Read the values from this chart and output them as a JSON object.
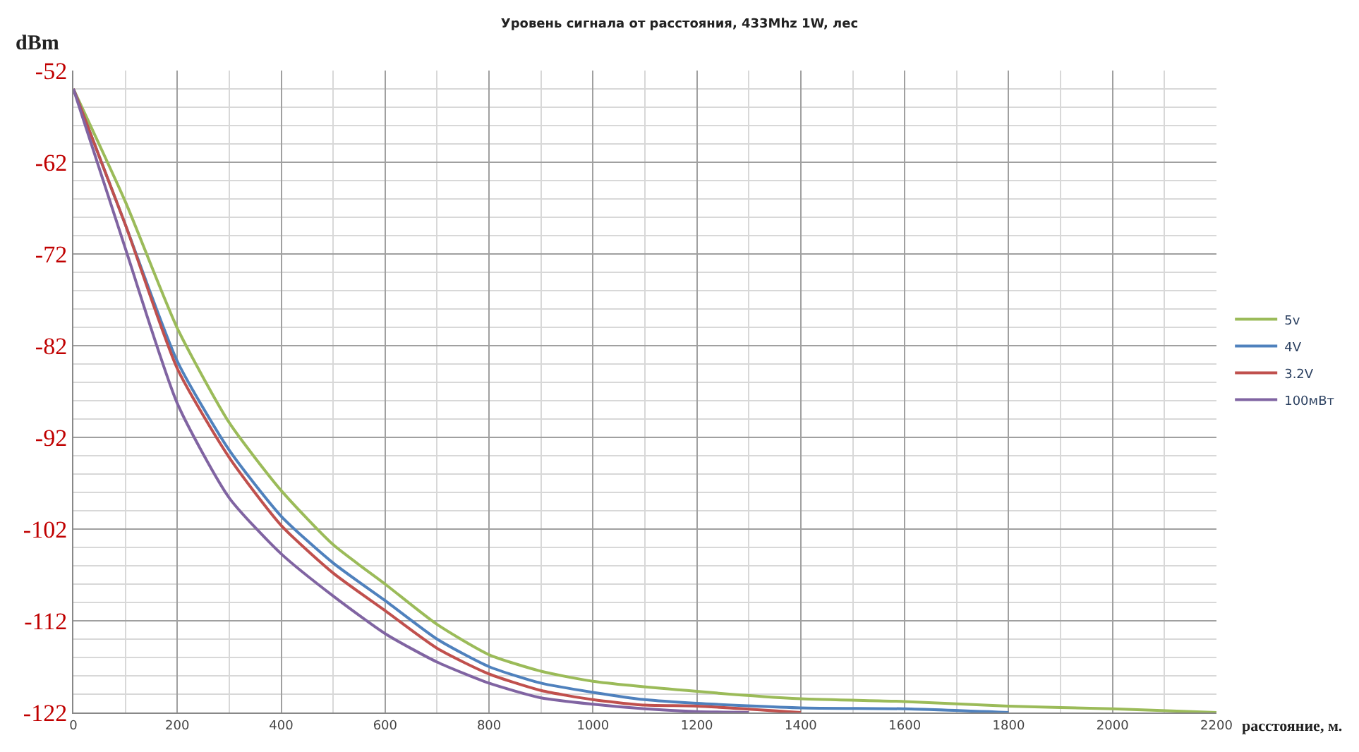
{
  "chart_data": {
    "type": "line",
    "title": "Уровень сигнала от расстояния, 433Mhz 1W, лес",
    "xlabel": "расстояние, м.",
    "ylabel": "dBm",
    "xlim": [
      0,
      2200
    ],
    "xticks": [
      0,
      200,
      400,
      600,
      800,
      1000,
      1200,
      1400,
      1600,
      1800,
      2000,
      2200
    ],
    "ylim": [
      -122,
      -52
    ],
    "yticks": [
      -122,
      -112,
      -102,
      -92,
      -82,
      -72,
      -62,
      -52
    ],
    "grid": true,
    "legend": "right",
    "marker": "none",
    "line_style": "solid",
    "series": [
      {
        "name": "5v",
        "color": "#9bbb59",
        "x": [
          0,
          100,
          200,
          300,
          400,
          500,
          600,
          700,
          800,
          900,
          1000,
          1200,
          1400,
          1600,
          1800,
          2000,
          2200
        ],
        "values": [
          -54,
          -66.3,
          -80.1,
          -90.4,
          -97.8,
          -103.7,
          -108,
          -112.4,
          -115.7,
          -117.5,
          -118.6,
          -119.7,
          -120.5,
          -120.8,
          -121.3,
          -121.6,
          -122
        ]
      },
      {
        "name": "4V",
        "color": "#4f81bd",
        "x": [
          0,
          100,
          200,
          300,
          400,
          500,
          600,
          700,
          800,
          900,
          1000,
          1100,
          1200,
          1400,
          1600,
          1800
        ],
        "values": [
          -54,
          -68.8,
          -83.7,
          -93.4,
          -100.6,
          -105.7,
          -109.8,
          -114,
          -117,
          -118.8,
          -119.8,
          -120.6,
          -121,
          -121.5,
          -121.6,
          -122
        ]
      },
      {
        "name": "3.2V",
        "color": "#c0504d",
        "x": [
          0,
          100,
          200,
          300,
          400,
          500,
          600,
          700,
          800,
          900,
          1000,
          1100,
          1200,
          1400
        ],
        "values": [
          -54,
          -68.8,
          -84.5,
          -94.2,
          -101.6,
          -106.8,
          -110.9,
          -115,
          -117.8,
          -119.6,
          -120.6,
          -121.2,
          -121.3,
          -122
        ]
      },
      {
        "name": "100мВт",
        "color": "#8064a2",
        "x": [
          0,
          100,
          200,
          300,
          400,
          500,
          600,
          700,
          800,
          900,
          1000,
          1100,
          1200,
          1300
        ],
        "values": [
          -54,
          -71.4,
          -88.3,
          -98.6,
          -104.7,
          -109.3,
          -113.4,
          -116.5,
          -118.8,
          -120.4,
          -121.1,
          -121.6,
          -121.9,
          -122
        ]
      }
    ]
  }
}
